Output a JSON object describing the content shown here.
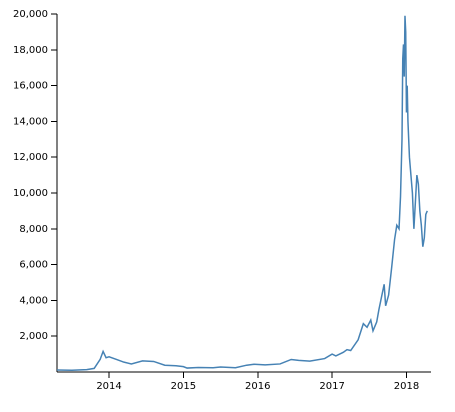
{
  "chart_data": {
    "type": "line",
    "x": [
      2013.3,
      2013.5,
      2013.7,
      2013.8,
      2013.88,
      2013.92,
      2013.96,
      2014.0,
      2014.1,
      2014.2,
      2014.3,
      2014.45,
      2014.6,
      2014.75,
      2014.9,
      2015.0,
      2015.05,
      2015.2,
      2015.4,
      2015.5,
      2015.7,
      2015.85,
      2015.95,
      2016.1,
      2016.3,
      2016.45,
      2016.55,
      2016.7,
      2016.9,
      2017.0,
      2017.05,
      2017.15,
      2017.2,
      2017.25,
      2017.35,
      2017.42,
      2017.47,
      2017.52,
      2017.55,
      2017.6,
      2017.63,
      2017.67,
      2017.7,
      2017.72,
      2017.76,
      2017.8,
      2017.84,
      2017.87,
      2017.9,
      2017.92,
      2017.94,
      2017.95,
      2017.96,
      2017.97,
      2017.98,
      2017.99,
      2018.0,
      2018.01,
      2018.02,
      2018.04,
      2018.06,
      2018.08,
      2018.1,
      2018.12,
      2018.14,
      2018.16,
      2018.18,
      2018.2,
      2018.22,
      2018.24,
      2018.26,
      2018.28
    ],
    "series": [
      {
        "color": "#4682b4",
        "values": [
          110,
          100,
          130,
          200,
          700,
          1150,
          800,
          850,
          700,
          550,
          450,
          620,
          590,
          380,
          350,
          300,
          220,
          250,
          240,
          280,
          240,
          380,
          430,
          400,
          450,
          700,
          650,
          610,
          750,
          1000,
          900,
          1100,
          1250,
          1200,
          1800,
          2700,
          2500,
          2900,
          2300,
          2800,
          3500,
          4300,
          4900,
          3700,
          4300,
          5800,
          7400,
          8200,
          8000,
          9800,
          13000,
          17500,
          18300,
          16500,
          19900,
          19000,
          14500,
          16000,
          14000,
          12000,
          11000,
          10000,
          8000,
          9500,
          11000,
          10500,
          9000,
          8200,
          7000,
          7500,
          8800,
          9000
        ]
      }
    ],
    "xlim": [
      2013.3,
      2018.33
    ],
    "xticks": [
      2014,
      2015,
      2016,
      2017,
      2018
    ],
    "ylim": [
      0,
      20000
    ],
    "yticks": [
      {
        "value": 2000,
        "label": "2,000"
      },
      {
        "value": 4000,
        "label": "4,000"
      },
      {
        "value": 6000,
        "label": "6,000"
      },
      {
        "value": 8000,
        "label": "8,000"
      },
      {
        "value": 10000,
        "label": "10,000"
      },
      {
        "value": 12000,
        "label": "12,000"
      },
      {
        "value": 14000,
        "label": "14,000"
      },
      {
        "value": 16000,
        "label": "16,000"
      },
      {
        "value": 18000,
        "label": "18,000"
      },
      {
        "value": 20000,
        "label": "20,000"
      }
    ]
  }
}
